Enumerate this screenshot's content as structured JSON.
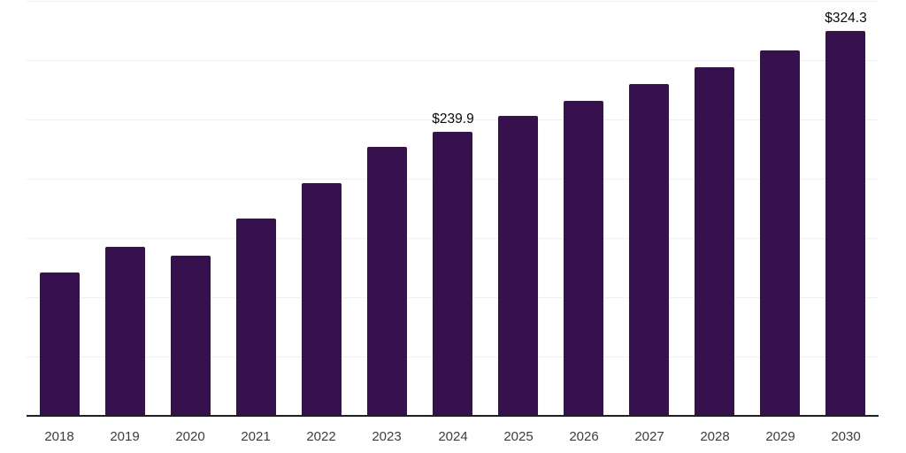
{
  "chart_data": {
    "type": "bar",
    "title": "",
    "xlabel": "",
    "ylabel": "",
    "categories": [
      "2018",
      "2019",
      "2020",
      "2021",
      "2022",
      "2023",
      "2024",
      "2025",
      "2026",
      "2027",
      "2028",
      "2029",
      "2030"
    ],
    "values": [
      120.8,
      142.4,
      134.9,
      166.5,
      196.1,
      226.6,
      239.9,
      252.7,
      265.4,
      279.6,
      293.7,
      307.9,
      324.3
    ],
    "data_labels": [
      "",
      "",
      "",
      "",
      "",
      "",
      "$239.9",
      "",
      "",
      "",
      "",
      "",
      "$324.3"
    ],
    "ylim": [
      0,
      350
    ],
    "gridline_step": 50,
    "grid": true,
    "y_tick_labels_visible": false,
    "legend_position": "none"
  },
  "colors": {
    "bar": "#36114E",
    "grid": "#f0f0f1",
    "axis": "#1f1f1f",
    "tick_label": "#3d3d3d",
    "data_label": "#0a0a0a",
    "background": "#ffffff"
  }
}
